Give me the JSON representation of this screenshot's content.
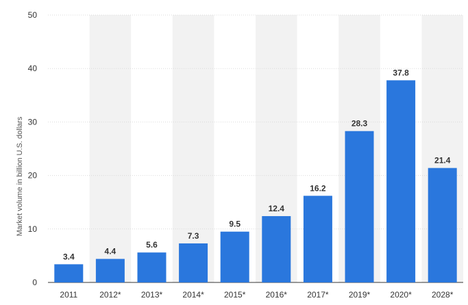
{
  "chart_data": {
    "type": "bar",
    "title": "",
    "xlabel": "",
    "ylabel": "Market volume in billion U.S. dollars",
    "categories": [
      "2011",
      "2012*",
      "2013*",
      "2014*",
      "2015*",
      "2016*",
      "2017*",
      "2019*",
      "2020*",
      "2028*"
    ],
    "values": [
      3.4,
      4.4,
      5.6,
      7.3,
      9.5,
      12.4,
      16.2,
      28.3,
      37.8,
      21.4
    ],
    "value_labels": [
      "3.4",
      "4.4",
      "5.6",
      "7.3",
      "9.5",
      "12.4",
      "16.2",
      "28.3",
      "37.8",
      "21.4"
    ],
    "yticks": [
      "0",
      "10",
      "20",
      "30",
      "40",
      "50"
    ],
    "ylim": [
      0,
      50
    ],
    "grid": true,
    "legend": "none",
    "colors": {
      "bar": "#2a77dd",
      "band": "#f2f2f2",
      "grid": "#d9d9d9",
      "axis": "#333333"
    }
  }
}
